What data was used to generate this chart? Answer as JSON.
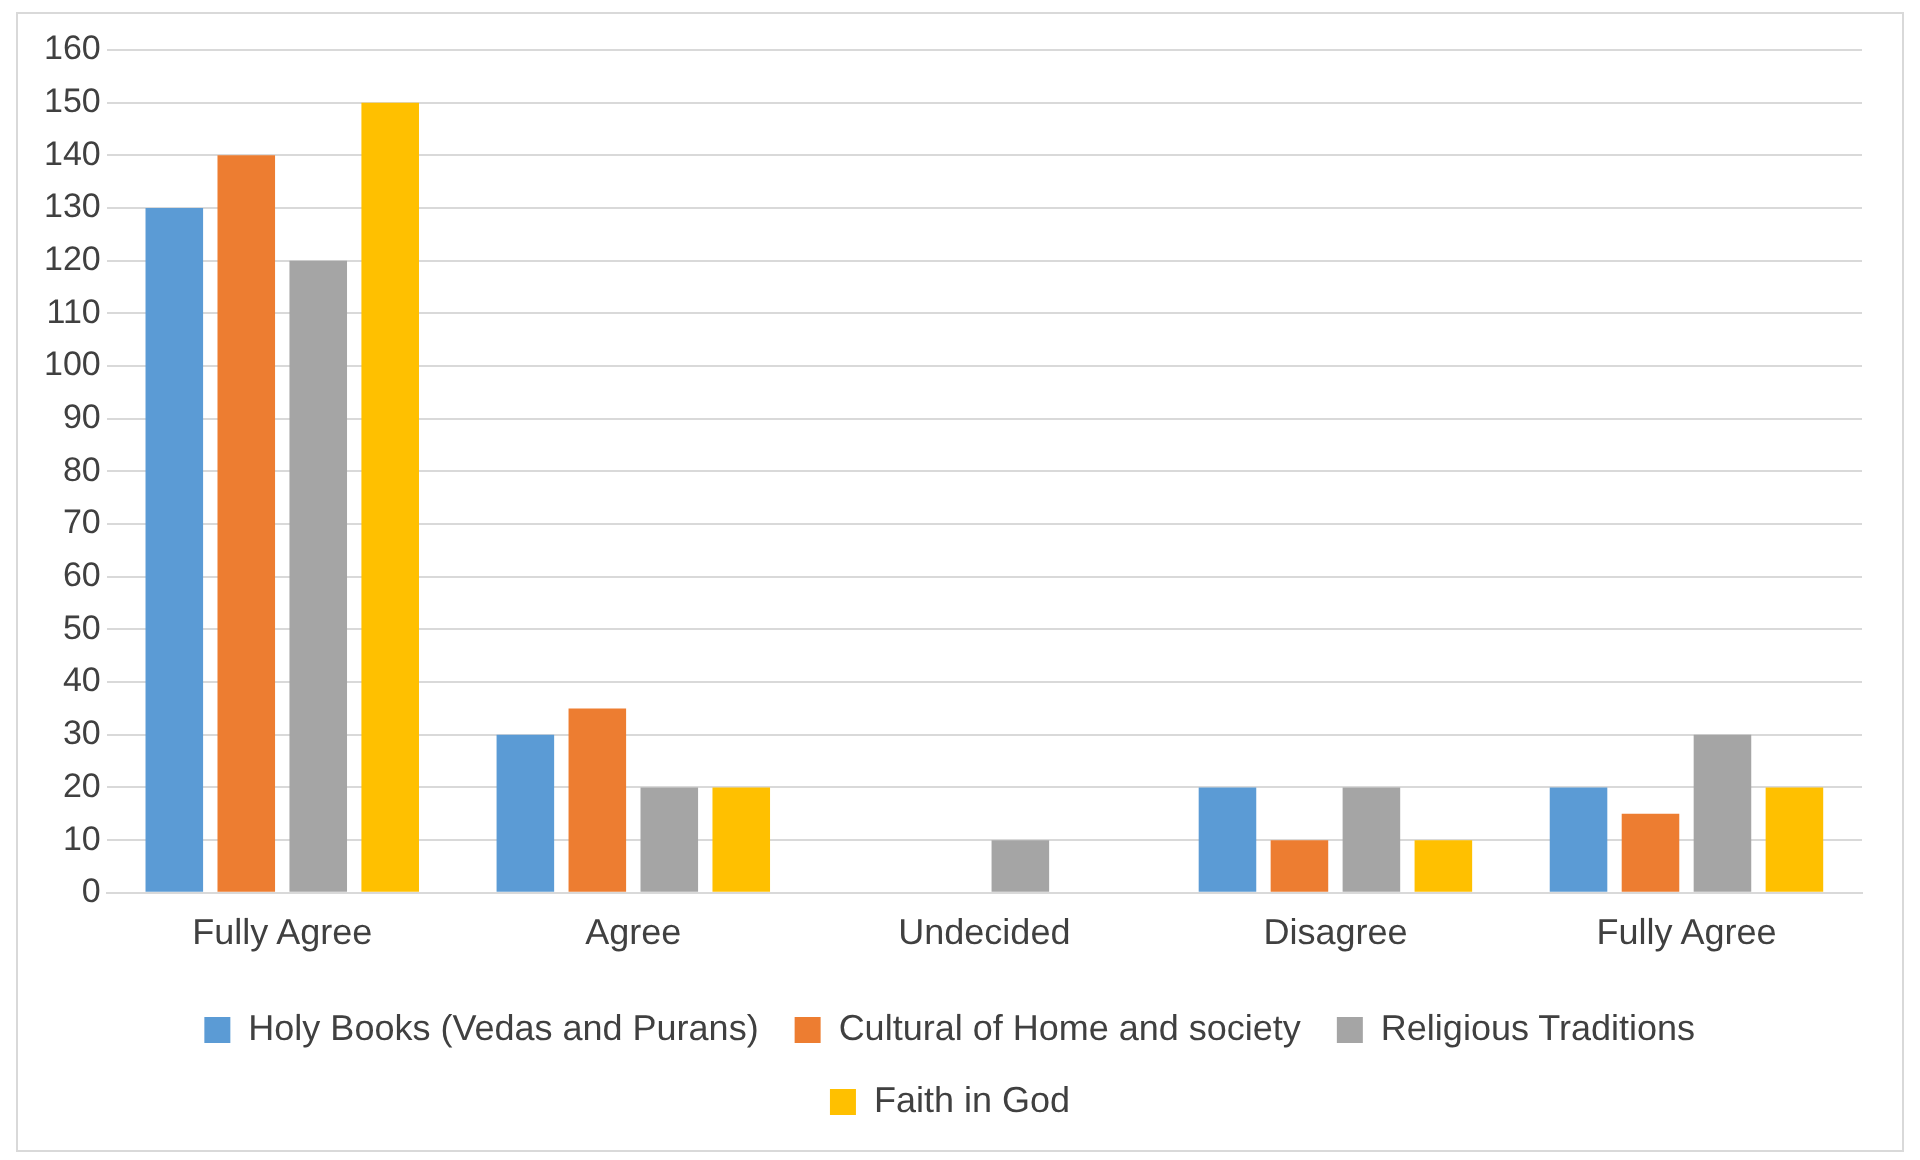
{
  "chart_data": {
    "type": "bar",
    "categories": [
      "Fully Agree",
      "Agree",
      "Undecided",
      "Disagree",
      "Fully Agree"
    ],
    "series": [
      {
        "name": "Holy Books (Vedas and Purans)",
        "color": "#5b9bd5",
        "values": [
          130,
          30,
          0,
          20,
          20
        ]
      },
      {
        "name": "Cultural of Home and society",
        "color": "#ed7d31",
        "values": [
          140,
          35,
          0,
          10,
          15
        ]
      },
      {
        "name": "Religious Traditions",
        "color": "#a5a5a5",
        "values": [
          120,
          20,
          10,
          20,
          30
        ]
      },
      {
        "name": "Faith in God",
        "color": "#ffc000",
        "values": [
          150,
          20,
          0,
          10,
          20
        ]
      }
    ],
    "ylim": [
      0,
      160
    ],
    "yticks": [
      0,
      10,
      20,
      30,
      40,
      50,
      60,
      70,
      80,
      90,
      100,
      110,
      120,
      130,
      140,
      150,
      160
    ],
    "grid": "y",
    "legend": "bottom"
  }
}
